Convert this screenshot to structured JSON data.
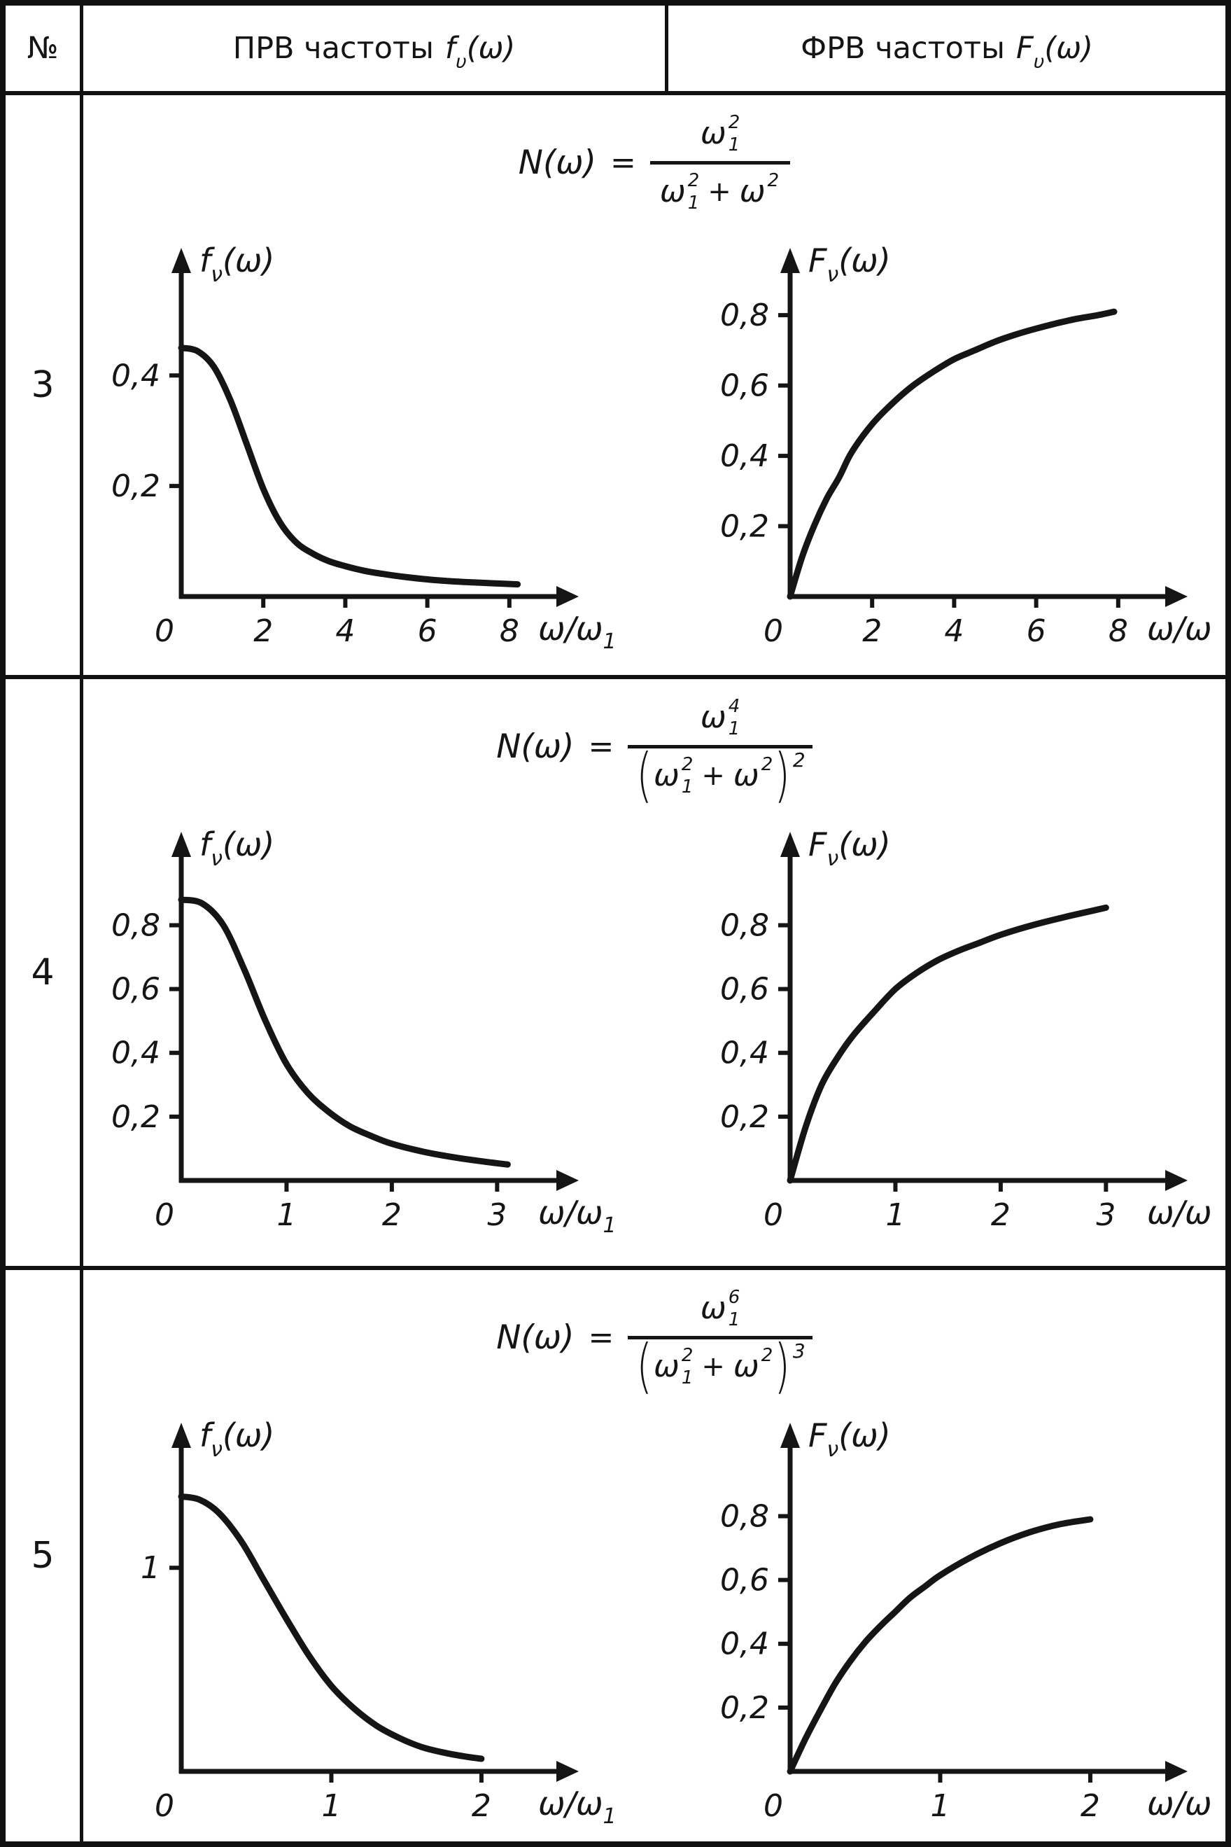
{
  "header": {
    "col_num": "№",
    "col_pdf": {
      "pre": "ПРВ частоты",
      "fn": "f",
      "fn_sub": "υ",
      "fn_post": "(ω)"
    },
    "col_cdf": {
      "pre": "ФРВ частоты",
      "fn": "F",
      "fn_sub": "υ",
      "fn_post": "(ω)"
    }
  },
  "rows": [
    {
      "num": "3",
      "formula": {
        "lhs": "N(ω)",
        "eq": "=",
        "num": {
          "base": "ω",
          "sup": "2",
          "sub": "1"
        },
        "den": {
          "open": "",
          "t1": {
            "base": "ω",
            "sup": "2",
            "sub": "1"
          },
          "plus": "+",
          "t2": {
            "base": "ω",
            "sup": "2",
            "sub": ""
          },
          "close": "",
          "exp": ""
        }
      }
    },
    {
      "num": "4",
      "formula": {
        "lhs": "N(ω)",
        "eq": "=",
        "num": {
          "base": "ω",
          "sup": "4",
          "sub": "1"
        },
        "den": {
          "open": "(",
          "t1": {
            "base": "ω",
            "sup": "2",
            "sub": "1"
          },
          "plus": "+",
          "t2": {
            "base": "ω",
            "sup": "2",
            "sub": ""
          },
          "close": ")",
          "exp": "2"
        }
      }
    },
    {
      "num": "5",
      "formula": {
        "lhs": "N(ω)",
        "eq": "=",
        "num": {
          "base": "ω",
          "sup": "6",
          "sub": "1"
        },
        "den": {
          "open": "(",
          "t1": {
            "base": "ω",
            "sup": "2",
            "sub": "1"
          },
          "plus": "+",
          "t2": {
            "base": "ω",
            "sup": "2",
            "sub": ""
          },
          "close": ")",
          "exp": "3"
        }
      }
    }
  ],
  "chart_data": [
    {
      "type": "line",
      "ylabel": {
        "fn": "f",
        "sub": "ν",
        "post": "(ω)"
      },
      "xlabel": {
        "base": "ω/ω",
        "sub": "1"
      },
      "xlim": [
        0,
        8.6
      ],
      "ylim": [
        0,
        0.56
      ],
      "origin": "0",
      "xticks": [
        {
          "v": 2,
          "label": "2"
        },
        {
          "v": 4,
          "label": "4"
        },
        {
          "v": 6,
          "label": "6"
        },
        {
          "v": 8,
          "label": "8"
        }
      ],
      "yticks": [
        {
          "v": 0.2,
          "label": "0,2"
        },
        {
          "v": 0.4,
          "label": "0,4"
        }
      ],
      "points": [
        [
          0,
          0.45
        ],
        [
          0.4,
          0.444
        ],
        [
          0.8,
          0.415
        ],
        [
          1.2,
          0.355
        ],
        [
          1.6,
          0.275
        ],
        [
          2,
          0.195
        ],
        [
          2.4,
          0.135
        ],
        [
          2.8,
          0.098
        ],
        [
          3.2,
          0.078
        ],
        [
          3.6,
          0.064
        ],
        [
          4,
          0.055
        ],
        [
          4.5,
          0.046
        ],
        [
          5,
          0.04
        ],
        [
          5.5,
          0.035
        ],
        [
          6,
          0.031
        ],
        [
          6.5,
          0.028
        ],
        [
          7,
          0.026
        ],
        [
          7.6,
          0.024
        ],
        [
          8.2,
          0.022
        ]
      ]
    },
    {
      "type": "line",
      "ylabel": {
        "fn": "F",
        "sub": "ν",
        "post": "(ω)"
      },
      "xlabel": {
        "base": "ω/ω",
        "sub": ""
      },
      "xlim": [
        0,
        8.6
      ],
      "ylim": [
        0,
        0.88
      ],
      "origin": "0",
      "xticks": [
        {
          "v": 2,
          "label": "2"
        },
        {
          "v": 4,
          "label": "4"
        },
        {
          "v": 6,
          "label": "6"
        },
        {
          "v": 8,
          "label": "8"
        }
      ],
      "yticks": [
        {
          "v": 0.2,
          "label": "0,2"
        },
        {
          "v": 0.4,
          "label": "0,4"
        },
        {
          "v": 0.6,
          "label": "0,6"
        },
        {
          "v": 0.8,
          "label": "0,8"
        }
      ],
      "points": [
        [
          0,
          0
        ],
        [
          0.3,
          0.115
        ],
        [
          0.6,
          0.205
        ],
        [
          0.9,
          0.28
        ],
        [
          1.2,
          0.34
        ],
        [
          1.5,
          0.41
        ],
        [
          2,
          0.49
        ],
        [
          2.5,
          0.55
        ],
        [
          3,
          0.6
        ],
        [
          3.5,
          0.64
        ],
        [
          4,
          0.675
        ],
        [
          4.5,
          0.7
        ],
        [
          5,
          0.725
        ],
        [
          5.5,
          0.745
        ],
        [
          6,
          0.762
        ],
        [
          6.5,
          0.777
        ],
        [
          7,
          0.79
        ],
        [
          7.5,
          0.8
        ],
        [
          7.9,
          0.81
        ]
      ]
    },
    {
      "type": "line",
      "ylabel": {
        "fn": "f",
        "sub": "ν",
        "post": "(ω)"
      },
      "xlabel": {
        "base": "ω/ω",
        "sub": "1"
      },
      "xlim": [
        0,
        3.35
      ],
      "ylim": [
        0,
        0.97
      ],
      "origin": "0",
      "xticks": [
        {
          "v": 1,
          "label": "1"
        },
        {
          "v": 2,
          "label": "2"
        },
        {
          "v": 3,
          "label": "3"
        }
      ],
      "yticks": [
        {
          "v": 0.2,
          "label": "0,2"
        },
        {
          "v": 0.4,
          "label": "0,4"
        },
        {
          "v": 0.6,
          "label": "0,6"
        },
        {
          "v": 0.8,
          "label": "0,8"
        }
      ],
      "points": [
        [
          0,
          0.88
        ],
        [
          0.2,
          0.868
        ],
        [
          0.4,
          0.8
        ],
        [
          0.6,
          0.66
        ],
        [
          0.8,
          0.5
        ],
        [
          1,
          0.365
        ],
        [
          1.2,
          0.275
        ],
        [
          1.4,
          0.215
        ],
        [
          1.6,
          0.17
        ],
        [
          1.8,
          0.14
        ],
        [
          2,
          0.115
        ],
        [
          2.3,
          0.09
        ],
        [
          2.6,
          0.072
        ],
        [
          2.9,
          0.058
        ],
        [
          3.1,
          0.05
        ]
      ]
    },
    {
      "type": "line",
      "ylabel": {
        "fn": "F",
        "sub": "ν",
        "post": "(ω)"
      },
      "xlabel": {
        "base": "ω/ω",
        "sub": ""
      },
      "xlim": [
        0,
        3.35
      ],
      "ylim": [
        0,
        0.97
      ],
      "origin": "0",
      "xticks": [
        {
          "v": 1,
          "label": "1"
        },
        {
          "v": 2,
          "label": "2"
        },
        {
          "v": 3,
          "label": "3"
        }
      ],
      "yticks": [
        {
          "v": 0.2,
          "label": "0,2"
        },
        {
          "v": 0.4,
          "label": "0,4"
        },
        {
          "v": 0.6,
          "label": "0,6"
        },
        {
          "v": 0.8,
          "label": "0,8"
        }
      ],
      "points": [
        [
          0,
          0
        ],
        [
          0.15,
          0.17
        ],
        [
          0.3,
          0.3
        ],
        [
          0.45,
          0.385
        ],
        [
          0.6,
          0.455
        ],
        [
          0.8,
          0.53
        ],
        [
          1,
          0.6
        ],
        [
          1.2,
          0.65
        ],
        [
          1.4,
          0.69
        ],
        [
          1.6,
          0.72
        ],
        [
          1.8,
          0.745
        ],
        [
          2,
          0.77
        ],
        [
          2.3,
          0.8
        ],
        [
          2.6,
          0.825
        ],
        [
          2.8,
          0.84
        ],
        [
          3,
          0.855
        ]
      ]
    },
    {
      "type": "line",
      "ylabel": {
        "fn": "f",
        "sub": "ν",
        "post": "(ω)"
      },
      "xlabel": {
        "base": "ω/ω",
        "sub": "1"
      },
      "xlim": [
        0,
        2.35
      ],
      "ylim": [
        0,
        1.52
      ],
      "origin": "0",
      "xticks": [
        {
          "v": 1,
          "label": "1"
        },
        {
          "v": 2,
          "label": "2"
        }
      ],
      "yticks": [
        {
          "v": 1,
          "label": "1"
        }
      ],
      "points": [
        [
          0,
          1.35
        ],
        [
          0.12,
          1.335
        ],
        [
          0.25,
          1.27
        ],
        [
          0.4,
          1.13
        ],
        [
          0.55,
          0.94
        ],
        [
          0.7,
          0.75
        ],
        [
          0.85,
          0.57
        ],
        [
          1,
          0.42
        ],
        [
          1.15,
          0.31
        ],
        [
          1.3,
          0.225
        ],
        [
          1.45,
          0.165
        ],
        [
          1.6,
          0.12
        ],
        [
          1.75,
          0.092
        ],
        [
          1.9,
          0.072
        ],
        [
          2,
          0.062
        ]
      ]
    },
    {
      "type": "line",
      "ylabel": {
        "fn": "F",
        "sub": "ν",
        "post": "(ω)"
      },
      "xlabel": {
        "base": "ω/ω",
        "sub": ""
      },
      "xlim": [
        0,
        2.35
      ],
      "ylim": [
        0,
        0.97
      ],
      "origin": "0",
      "xticks": [
        {
          "v": 1,
          "label": "1"
        },
        {
          "v": 2,
          "label": "2"
        }
      ],
      "yticks": [
        {
          "v": 0.2,
          "label": "0,2"
        },
        {
          "v": 0.4,
          "label": "0,4"
        },
        {
          "v": 0.6,
          "label": "0,6"
        },
        {
          "v": 0.8,
          "label": "0,8"
        }
      ],
      "points": [
        [
          0,
          0
        ],
        [
          0.1,
          0.1
        ],
        [
          0.2,
          0.19
        ],
        [
          0.3,
          0.275
        ],
        [
          0.4,
          0.345
        ],
        [
          0.5,
          0.405
        ],
        [
          0.6,
          0.455
        ],
        [
          0.7,
          0.5
        ],
        [
          0.8,
          0.545
        ],
        [
          0.9,
          0.58
        ],
        [
          1,
          0.615
        ],
        [
          1.2,
          0.67
        ],
        [
          1.4,
          0.715
        ],
        [
          1.6,
          0.75
        ],
        [
          1.8,
          0.775
        ],
        [
          2,
          0.79
        ]
      ]
    }
  ]
}
